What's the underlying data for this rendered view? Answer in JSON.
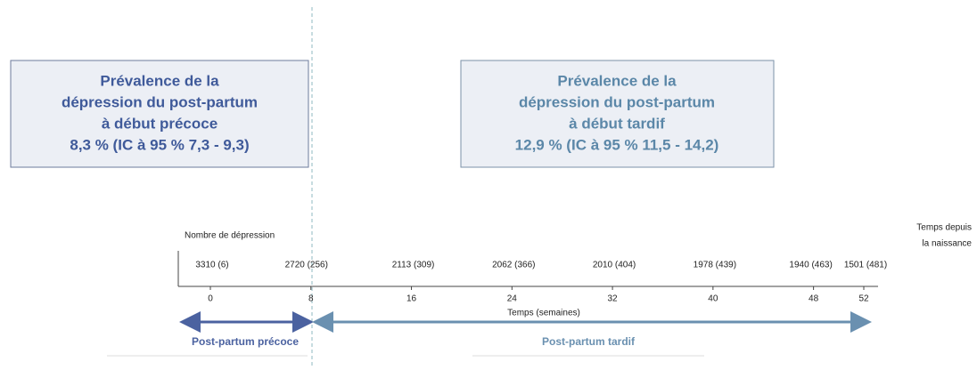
{
  "boxes": [
    {
      "lines": [
        "Prévalence de la",
        "dépression du post-partum",
        "à début précoce",
        "8,3 % (IC à 95 % 7,3 - 9,3)"
      ]
    },
    {
      "lines": [
        "Prévalence de la",
        "dépression du post-partum",
        "à début tardif",
        "12,9 % (IC à 95 % 11,5 - 14,2)"
      ]
    }
  ],
  "timeline": {
    "count_label": "Nombre de dépression",
    "counts": [
      "3310 (6)",
      "2720 (256)",
      "2113 (309)",
      "2062 (366)",
      "2010 (404)",
      "1978 (439)",
      "1940 (463)",
      "1501 (481)"
    ],
    "ticks": [
      0,
      8,
      16,
      24,
      32,
      40,
      48,
      52
    ],
    "axis_title": "Temps (semaines)",
    "right_title": [
      "Temps depuis",
      "la naissance"
    ]
  },
  "periods": [
    "Post-partum précoce",
    "Post-partum tardif"
  ]
}
